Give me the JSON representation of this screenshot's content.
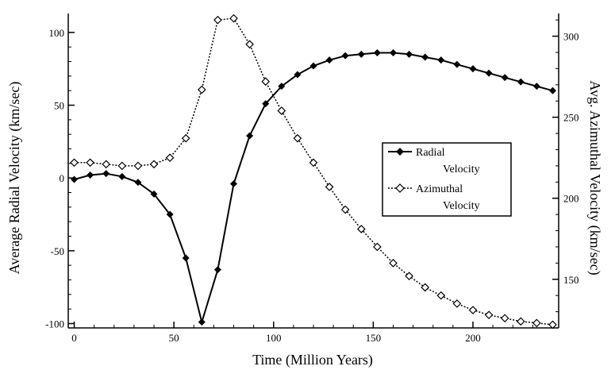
{
  "chart_data": {
    "type": "line",
    "xlabel": "Time (Million Years)",
    "ylabel_left": "Average Radial Velocity (km/sec)",
    "ylabel_right": "Avg. Azimuthal Velocity (km/sec)",
    "xlim": [
      -3,
      243
    ],
    "ylim_left": [
      -103,
      113
    ],
    "ylim_right": [
      120,
      314
    ],
    "x_ticks": [
      0,
      50,
      100,
      150,
      200
    ],
    "y_left_ticks": [
      -100,
      -50,
      0,
      50,
      100
    ],
    "y_right_ticks": [
      150,
      200,
      250,
      300
    ],
    "grid": false,
    "legend": {
      "placement": "center-right",
      "entries": [
        {
          "line1": "Radial",
          "line2": "Velocity"
        },
        {
          "line1": "Azimuthal",
          "line2": "Velocity"
        }
      ]
    },
    "series": [
      {
        "axis": "left",
        "marker": "filled-diamond",
        "line_style": "solid",
        "x": [
          0,
          8,
          16,
          24,
          32,
          40,
          48,
          56,
          64,
          72,
          80,
          88,
          96,
          104,
          112,
          120,
          128,
          136,
          144,
          152,
          160,
          168,
          176,
          184,
          192,
          200,
          208,
          216,
          224,
          232,
          240
        ],
        "values": [
          -1,
          2,
          3,
          1,
          -3,
          -11,
          -25,
          -55,
          -99,
          -63,
          -4,
          29,
          51,
          63,
          71,
          77,
          81,
          84,
          85,
          86,
          86,
          85,
          83,
          81,
          78,
          75,
          72,
          69,
          66,
          63,
          60
        ]
      },
      {
        "axis": "right",
        "marker": "open-diamond",
        "line_style": "dotted",
        "x": [
          0,
          8,
          16,
          24,
          32,
          40,
          48,
          56,
          64,
          72,
          80,
          88,
          96,
          104,
          112,
          120,
          128,
          136,
          144,
          152,
          160,
          168,
          176,
          184,
          192,
          200,
          208,
          216,
          224,
          232,
          240
        ],
        "values": [
          222,
          222,
          221,
          220,
          220,
          221,
          225,
          237,
          267,
          310,
          311,
          295,
          272,
          254,
          237,
          222,
          207,
          193,
          181,
          170,
          160,
          152,
          145,
          140,
          135,
          131,
          128,
          126,
          124,
          123,
          122
        ]
      }
    ]
  }
}
